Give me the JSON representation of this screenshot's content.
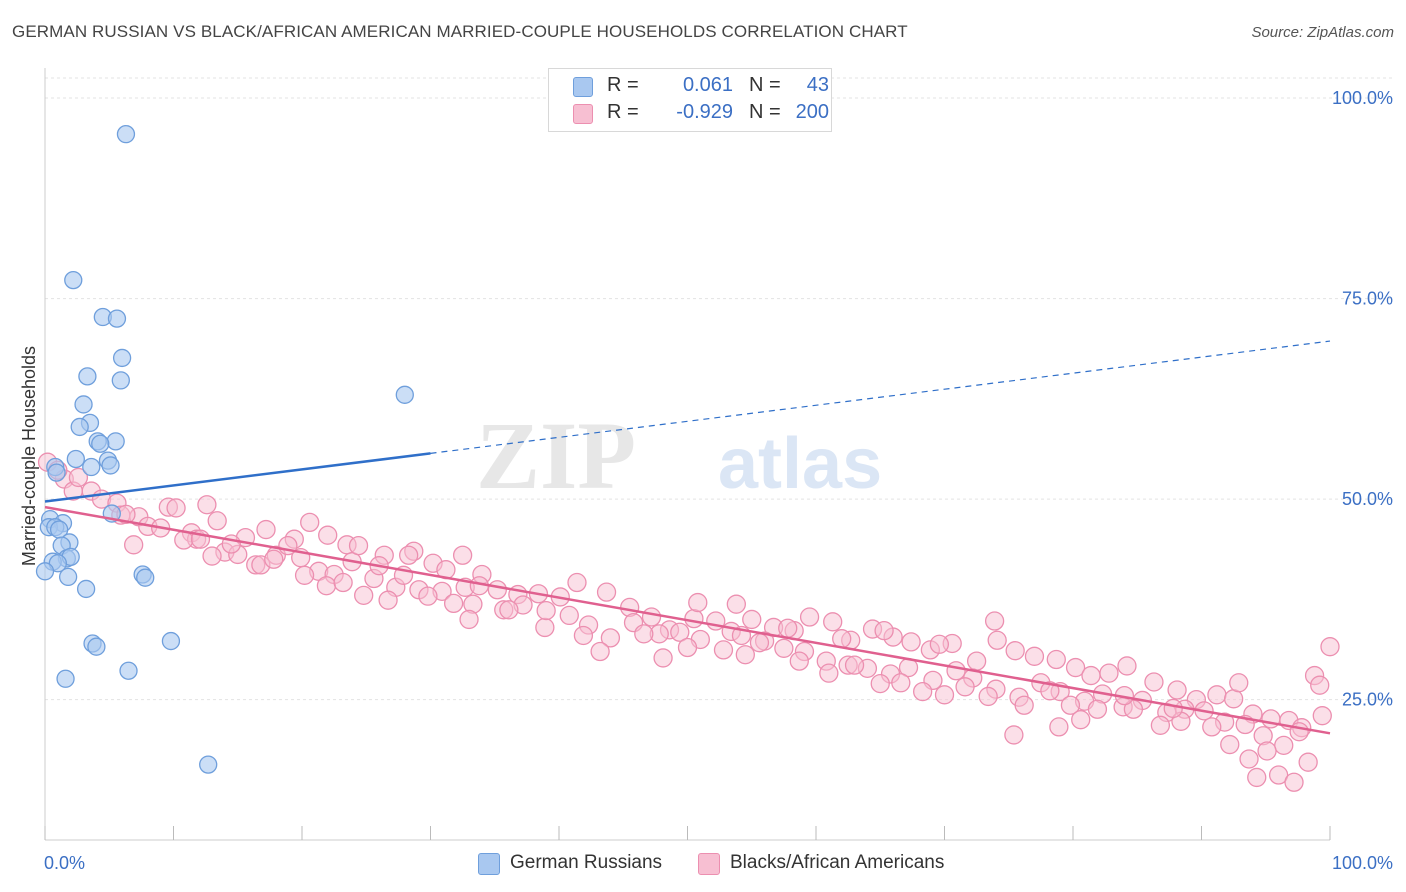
{
  "title": "GERMAN RUSSIAN VS BLACK/AFRICAN AMERICAN MARRIED-COUPLE HOUSEHOLDS CORRELATION CHART",
  "source": "Source: ZipAtlas.com",
  "watermark": {
    "zip": "ZIP",
    "atlas": "atlas"
  },
  "colors": {
    "blue_fill": "#a9c8f0",
    "blue_stroke": "#6f9fdc",
    "blue_line": "#2f6fc9",
    "pink_fill": "#f7bfd2",
    "pink_stroke": "#ec8fb0",
    "pink_line": "#e0608f",
    "axis_text": "#3b6fc4",
    "grid": "#e3e3e3"
  },
  "legend": {
    "rows": [
      {
        "r_label": "R =",
        "r_value": "0.061",
        "n_label": "N =",
        "n_value": "43"
      },
      {
        "r_label": "R =",
        "r_value": "-0.929",
        "n_label": "N =",
        "n_value": "200"
      }
    ]
  },
  "bottom_legend": [
    "German Russians",
    "Blacks/African Americans"
  ],
  "chart_data": {
    "type": "scatter",
    "xlabel": "",
    "ylabel": "Married-couple Households",
    "xlim": [
      0,
      100
    ],
    "ylim": [
      7.5,
      102.5
    ],
    "x_tick_labels": [
      "0.0%",
      "100.0%"
    ],
    "y_tick_labels": [
      {
        "value": 100,
        "label": "100.0%"
      },
      {
        "value": 75,
        "label": "75.0%"
      },
      {
        "value": 50,
        "label": "50.0%"
      },
      {
        "value": 25,
        "label": "25.0%"
      }
    ],
    "grid": true,
    "series": [
      {
        "name": "German Russians",
        "r": 0.061,
        "n": 43,
        "trend": {
          "solid": [
            [
              0,
              49.7
            ],
            [
              30,
              55.7
            ]
          ],
          "dashed": [
            [
              30,
              55.7
            ],
            [
              100,
              69.7
            ]
          ]
        },
        "points": [
          [
            6.3,
            95.5
          ],
          [
            2.2,
            77.3
          ],
          [
            4.5,
            72.7
          ],
          [
            5.6,
            72.5
          ],
          [
            6.0,
            67.6
          ],
          [
            3.3,
            65.3
          ],
          [
            5.9,
            64.8
          ],
          [
            28.0,
            63.0
          ],
          [
            3.0,
            61.8
          ],
          [
            3.5,
            59.5
          ],
          [
            2.7,
            59.0
          ],
          [
            4.1,
            57.2
          ],
          [
            5.5,
            57.2
          ],
          [
            4.3,
            56.9
          ],
          [
            2.4,
            55.0
          ],
          [
            4.9,
            54.8
          ],
          [
            5.1,
            54.2
          ],
          [
            0.8,
            54.0
          ],
          [
            3.6,
            54.0
          ],
          [
            5.2,
            48.2
          ],
          [
            0.4,
            47.5
          ],
          [
            1.4,
            47.0
          ],
          [
            0.3,
            46.5
          ],
          [
            0.8,
            46.5
          ],
          [
            1.1,
            46.2
          ],
          [
            1.9,
            44.6
          ],
          [
            1.3,
            44.2
          ],
          [
            1.7,
            42.6
          ],
          [
            2.0,
            42.8
          ],
          [
            0.6,
            42.2
          ],
          [
            1.0,
            42.0
          ],
          [
            0.0,
            41.0
          ],
          [
            1.8,
            40.3
          ],
          [
            7.6,
            40.6
          ],
          [
            7.8,
            40.2
          ],
          [
            3.2,
            38.8
          ],
          [
            3.7,
            32.0
          ],
          [
            4.0,
            31.6
          ],
          [
            9.8,
            32.3
          ],
          [
            6.5,
            28.6
          ],
          [
            1.6,
            27.6
          ],
          [
            12.7,
            16.9
          ],
          [
            0.9,
            53.3
          ]
        ]
      },
      {
        "name": "Blacks/African Americans",
        "r": -0.929,
        "n": 200,
        "trend": {
          "solid": [
            [
              0,
              49.0
            ],
            [
              100,
              20.8
            ]
          ]
        },
        "points": [
          [
            0.2,
            54.6
          ],
          [
            1.5,
            52.5
          ],
          [
            2.2,
            51.0
          ],
          [
            3.6,
            51.0
          ],
          [
            4.4,
            50.0
          ],
          [
            5.6,
            49.5
          ],
          [
            5.9,
            48.0
          ],
          [
            7.3,
            47.8
          ],
          [
            9.6,
            49.0
          ],
          [
            12.6,
            49.3
          ],
          [
            1.0,
            53.6
          ],
          [
            2.6,
            52.7
          ],
          [
            8.0,
            46.6
          ],
          [
            11.4,
            45.8
          ],
          [
            13.4,
            47.3
          ],
          [
            15.6,
            45.2
          ],
          [
            17.2,
            46.2
          ],
          [
            19.4,
            45.0
          ],
          [
            20.6,
            47.1
          ],
          [
            22.0,
            45.5
          ],
          [
            23.5,
            44.3
          ],
          [
            26.4,
            43.0
          ],
          [
            28.7,
            43.5
          ],
          [
            30.2,
            42.0
          ],
          [
            32.5,
            43.0
          ],
          [
            34.0,
            40.6
          ],
          [
            6.3,
            48.1
          ],
          [
            10.2,
            48.9
          ],
          [
            14.0,
            43.4
          ],
          [
            16.4,
            41.8
          ],
          [
            18.0,
            43.0
          ],
          [
            19.9,
            42.7
          ],
          [
            21.3,
            41.0
          ],
          [
            22.5,
            40.6
          ],
          [
            23.9,
            42.2
          ],
          [
            25.6,
            40.1
          ],
          [
            27.3,
            39.0
          ],
          [
            29.1,
            38.7
          ],
          [
            30.9,
            38.5
          ],
          [
            32.7,
            39.0
          ],
          [
            33.8,
            39.2
          ],
          [
            35.2,
            38.7
          ],
          [
            36.8,
            38.1
          ],
          [
            38.4,
            38.2
          ],
          [
            40.1,
            37.8
          ],
          [
            41.4,
            39.6
          ],
          [
            43.7,
            38.4
          ],
          [
            45.5,
            36.5
          ],
          [
            47.2,
            35.3
          ],
          [
            48.6,
            33.7
          ],
          [
            50.5,
            35.1
          ],
          [
            52.2,
            34.8
          ],
          [
            53.4,
            33.5
          ],
          [
            55.0,
            35.0
          ],
          [
            56.7,
            34.0
          ],
          [
            58.3,
            33.6
          ],
          [
            59.5,
            35.3
          ],
          [
            61.3,
            34.7
          ],
          [
            62.7,
            32.4
          ],
          [
            64.4,
            33.8
          ],
          [
            66.0,
            32.8
          ],
          [
            67.4,
            32.2
          ],
          [
            68.9,
            31.2
          ],
          [
            70.6,
            32.0
          ],
          [
            72.5,
            29.8
          ],
          [
            74.1,
            32.4
          ],
          [
            75.5,
            31.1
          ],
          [
            77.0,
            30.4
          ],
          [
            78.7,
            30.0
          ],
          [
            80.2,
            29.0
          ],
          [
            81.4,
            28.0
          ],
          [
            82.8,
            28.3
          ],
          [
            84.2,
            29.2
          ],
          [
            86.3,
            27.2
          ],
          [
            88.1,
            26.2
          ],
          [
            89.6,
            25.0
          ],
          [
            91.2,
            25.6
          ],
          [
            92.5,
            25.1
          ],
          [
            94.0,
            23.2
          ],
          [
            95.4,
            22.6
          ],
          [
            96.8,
            22.4
          ],
          [
            97.8,
            21.5
          ],
          [
            98.8,
            28.0
          ],
          [
            99.4,
            23.0
          ],
          [
            11.8,
            45.0
          ],
          [
            13.0,
            42.9
          ],
          [
            15.0,
            43.1
          ],
          [
            16.8,
            41.8
          ],
          [
            18.9,
            44.2
          ],
          [
            20.2,
            40.5
          ],
          [
            21.9,
            39.2
          ],
          [
            23.2,
            39.6
          ],
          [
            24.8,
            38.0
          ],
          [
            26.7,
            37.4
          ],
          [
            27.9,
            40.5
          ],
          [
            29.8,
            37.9
          ],
          [
            31.8,
            37.0
          ],
          [
            33.3,
            36.9
          ],
          [
            35.7,
            36.2
          ],
          [
            37.2,
            36.8
          ],
          [
            38.9,
            34.0
          ],
          [
            40.8,
            35.5
          ],
          [
            42.3,
            34.3
          ],
          [
            44.0,
            32.7
          ],
          [
            45.8,
            34.6
          ],
          [
            47.8,
            33.2
          ],
          [
            49.4,
            33.4
          ],
          [
            51.0,
            32.5
          ],
          [
            52.8,
            31.2
          ],
          [
            54.5,
            30.6
          ],
          [
            56.0,
            32.3
          ],
          [
            57.5,
            31.4
          ],
          [
            59.1,
            31.0
          ],
          [
            60.8,
            29.8
          ],
          [
            62.5,
            29.3
          ],
          [
            64.0,
            28.9
          ],
          [
            65.8,
            28.2
          ],
          [
            67.2,
            29.0
          ],
          [
            69.1,
            27.4
          ],
          [
            70.9,
            28.6
          ],
          [
            72.2,
            27.7
          ],
          [
            74.0,
            26.3
          ],
          [
            75.8,
            25.3
          ],
          [
            77.5,
            27.1
          ],
          [
            79.0,
            26.0
          ],
          [
            80.9,
            24.8
          ],
          [
            82.3,
            25.7
          ],
          [
            83.9,
            24.1
          ],
          [
            85.4,
            24.9
          ],
          [
            87.3,
            23.4
          ],
          [
            88.7,
            23.8
          ],
          [
            90.2,
            23.6
          ],
          [
            91.8,
            22.2
          ],
          [
            93.4,
            21.9
          ],
          [
            94.8,
            20.5
          ],
          [
            96.4,
            19.3
          ],
          [
            97.6,
            21.0
          ],
          [
            99.2,
            26.8
          ],
          [
            6.9,
            44.3
          ],
          [
            9.0,
            46.4
          ],
          [
            10.8,
            44.9
          ],
          [
            12.1,
            45.0
          ],
          [
            14.5,
            44.4
          ],
          [
            17.8,
            42.5
          ],
          [
            24.4,
            44.2
          ],
          [
            26.0,
            41.7
          ],
          [
            28.3,
            43.0
          ],
          [
            31.2,
            41.2
          ],
          [
            33.0,
            35.0
          ],
          [
            36.1,
            36.2
          ],
          [
            39.0,
            36.1
          ],
          [
            41.9,
            33.0
          ],
          [
            43.2,
            31.0
          ],
          [
            46.6,
            33.2
          ],
          [
            48.1,
            30.2
          ],
          [
            50.0,
            31.5
          ],
          [
            53.8,
            36.9
          ],
          [
            55.6,
            32.1
          ],
          [
            58.7,
            29.8
          ],
          [
            61.0,
            28.3
          ],
          [
            63.0,
            29.3
          ],
          [
            65.0,
            27.0
          ],
          [
            66.6,
            27.1
          ],
          [
            68.3,
            26.0
          ],
          [
            70.0,
            25.6
          ],
          [
            71.6,
            26.6
          ],
          [
            73.4,
            25.4
          ],
          [
            76.2,
            24.3
          ],
          [
            78.2,
            26.1
          ],
          [
            79.8,
            24.3
          ],
          [
            81.9,
            23.8
          ],
          [
            84.7,
            23.8
          ],
          [
            86.8,
            21.8
          ],
          [
            88.4,
            22.3
          ],
          [
            90.8,
            21.6
          ],
          [
            92.2,
            19.4
          ],
          [
            93.7,
            17.6
          ],
          [
            95.1,
            18.6
          ],
          [
            96.0,
            15.6
          ],
          [
            97.2,
            14.7
          ],
          [
            100.0,
            31.6
          ],
          [
            98.3,
            17.2
          ],
          [
            94.3,
            15.3
          ],
          [
            92.9,
            27.1
          ],
          [
            87.8,
            23.9
          ],
          [
            84.0,
            25.5
          ],
          [
            80.6,
            22.5
          ],
          [
            78.9,
            21.6
          ],
          [
            75.4,
            20.6
          ],
          [
            73.9,
            34.8
          ],
          [
            69.6,
            31.9
          ],
          [
            65.3,
            33.6
          ],
          [
            62.0,
            32.6
          ],
          [
            57.8,
            33.9
          ],
          [
            54.2,
            33.0
          ],
          [
            50.8,
            37.1
          ]
        ]
      }
    ]
  }
}
